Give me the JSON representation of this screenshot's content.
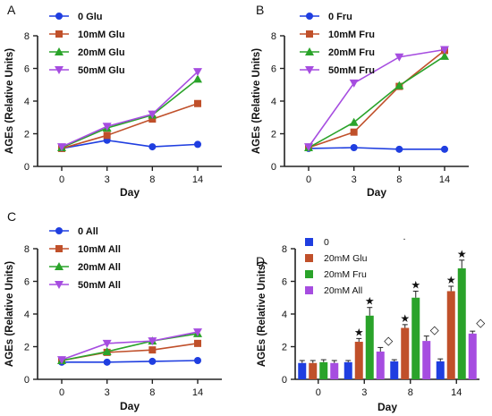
{
  "colors": {
    "c0": "#1f3ee0",
    "c10": "#c0502a",
    "c20": "#2aa32a",
    "c50": "#a64de0",
    "axis": "#222222"
  },
  "chart_data": [
    {
      "panel_label": "A",
      "type": "line",
      "x": [
        "0",
        "3",
        "8",
        "14"
      ],
      "xlabel": "Day",
      "ylabel": "AGEs (Relative Units)",
      "ylim": [
        0,
        8
      ],
      "yticks": [
        "0",
        "2",
        "4",
        "6",
        "8"
      ],
      "legend_position": "top-left",
      "series": [
        {
          "name": "0 Glu",
          "color": "#1f3ee0",
          "marker": "circle",
          "values": [
            1.1,
            1.6,
            1.2,
            1.35
          ]
        },
        {
          "name": "10mM Glu",
          "color": "#c0502a",
          "marker": "square",
          "values": [
            1.1,
            1.9,
            2.9,
            3.85
          ]
        },
        {
          "name": "20mM Glu",
          "color": "#2aa32a",
          "marker": "triangle-up",
          "values": [
            1.15,
            2.35,
            3.15,
            5.35
          ]
        },
        {
          "name": "50mM Glu",
          "color": "#a64de0",
          "marker": "triangle-down",
          "values": [
            1.2,
            2.45,
            3.2,
            5.8
          ]
        }
      ]
    },
    {
      "panel_label": "B",
      "type": "line",
      "x": [
        "0",
        "3",
        "8",
        "14"
      ],
      "xlabel": "Day",
      "ylabel": "AGEs (Relative Units)",
      "ylim": [
        0,
        8
      ],
      "yticks": [
        "0",
        "2",
        "4",
        "6",
        "8"
      ],
      "legend_position": "top-left",
      "series": [
        {
          "name": "0 Fru",
          "color": "#1f3ee0",
          "marker": "circle",
          "values": [
            1.1,
            1.15,
            1.05,
            1.05
          ]
        },
        {
          "name": "10mM Fru",
          "color": "#c0502a",
          "marker": "square",
          "values": [
            1.15,
            2.1,
            4.9,
            7.1
          ]
        },
        {
          "name": "20mM Fru",
          "color": "#2aa32a",
          "marker": "triangle-up",
          "values": [
            1.15,
            2.7,
            4.95,
            6.75
          ]
        },
        {
          "name": "50mM Fru",
          "color": "#a64de0",
          "marker": "triangle-down",
          "values": [
            1.2,
            5.1,
            6.7,
            7.15
          ]
        }
      ]
    },
    {
      "panel_label": "C",
      "type": "line",
      "x": [
        "0",
        "3",
        "8",
        "14"
      ],
      "xlabel": "Day",
      "ylabel": "AGEs (Relative Units)",
      "ylim": [
        0,
        8
      ],
      "yticks": [
        "0",
        "2",
        "4",
        "6",
        "8"
      ],
      "legend_position": "top-left",
      "series": [
        {
          "name": "0 All",
          "color": "#1f3ee0",
          "marker": "circle",
          "values": [
            1.05,
            1.05,
            1.1,
            1.15
          ]
        },
        {
          "name": "10mM All",
          "color": "#c0502a",
          "marker": "square",
          "values": [
            1.15,
            1.65,
            1.8,
            2.2
          ]
        },
        {
          "name": "20mM All",
          "color": "#2aa32a",
          "marker": "triangle-up",
          "values": [
            1.15,
            1.7,
            2.35,
            2.8
          ]
        },
        {
          "name": "50mM All",
          "color": "#a64de0",
          "marker": "triangle-down",
          "values": [
            1.2,
            2.2,
            2.35,
            2.9
          ]
        }
      ]
    },
    {
      "panel_label": "D",
      "type": "bar",
      "categories": [
        "0",
        "3",
        "8",
        "14"
      ],
      "xlabel": "Day",
      "ylabel": "AGEs (Relative Units)",
      "ylim": [
        0,
        8
      ],
      "yticks": [
        "0",
        "2",
        "4",
        "6",
        "8"
      ],
      "legend_position": "top-left",
      "stray_mark": ".",
      "series": [
        {
          "name": "0",
          "color": "#1f3ee0",
          "values": [
            1.0,
            1.05,
            1.1,
            1.1
          ],
          "errors": [
            0.15,
            0.1,
            0.1,
            0.15
          ]
        },
        {
          "name": "20mM Glu",
          "color": "#c0502a",
          "values": [
            1.0,
            2.3,
            3.15,
            5.4
          ],
          "errors": [
            0.15,
            0.2,
            0.2,
            0.3
          ]
        },
        {
          "name": "20mM Fru",
          "color": "#2aa32a",
          "values": [
            1.05,
            3.9,
            5.0,
            6.8
          ],
          "errors": [
            0.15,
            0.5,
            0.4,
            0.5
          ]
        },
        {
          "name": "20mM All",
          "color": "#a64de0",
          "values": [
            1.0,
            1.7,
            2.35,
            2.8
          ],
          "errors": [
            0.15,
            0.25,
            0.3,
            0.15
          ]
        }
      ],
      "annotations": [
        {
          "category": "3",
          "series": "20mM Glu",
          "symbol": "★"
        },
        {
          "category": "3",
          "series": "20mM Fru",
          "symbol": "★"
        },
        {
          "category": "3",
          "series": "20mM All",
          "symbol": "◇"
        },
        {
          "category": "8",
          "series": "20mM Glu",
          "symbol": "★"
        },
        {
          "category": "8",
          "series": "20mM Fru",
          "symbol": "★"
        },
        {
          "category": "8",
          "series": "20mM All",
          "symbol": "◇"
        },
        {
          "category": "14",
          "series": "20mM Glu",
          "symbol": "★"
        },
        {
          "category": "14",
          "series": "20mM Fru",
          "symbol": "★"
        },
        {
          "category": "14",
          "series": "20mM All",
          "symbol": "◇"
        }
      ]
    }
  ]
}
